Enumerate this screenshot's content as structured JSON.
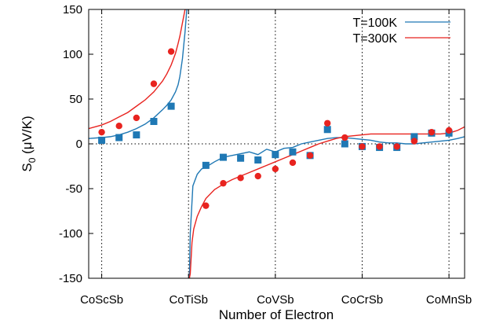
{
  "chart_data": {
    "type": "line",
    "xlabel": "Number of Electron",
    "ylabel_main": "S",
    "ylabel_sub": "0",
    "ylabel_unit": " (μV/K)",
    "categories": [
      "CoScSb",
      "CoTiSb",
      "CoVSb",
      "CoCrSb",
      "CoMnSb"
    ],
    "category_x": [
      0,
      1,
      2,
      3,
      4
    ],
    "xlim": [
      -0.15,
      4.18
    ],
    "ylim": [
      -150,
      150
    ],
    "yticks": [
      -150,
      -100,
      -50,
      0,
      50,
      100,
      150
    ],
    "grid": "dotted vertical lines at compounds, dotted zero line",
    "legend_position": "top-right",
    "series": [
      {
        "name": "T=100K",
        "kind": "line",
        "color": "#1f78b4",
        "x": [
          -0.15,
          0.0,
          0.1,
          0.2,
          0.3,
          0.4,
          0.5,
          0.6,
          0.7,
          0.75,
          0.8,
          0.85,
          0.88,
          0.9,
          0.93,
          0.96,
          0.98,
          0.99,
          1.0,
          1.01,
          1.02,
          1.05,
          1.1,
          1.15,
          1.2,
          1.3,
          1.4,
          1.5,
          1.6,
          1.7,
          1.8,
          1.9,
          2.0,
          2.1,
          2.2,
          2.3,
          2.4,
          2.5,
          2.6,
          2.7,
          2.8,
          2.9,
          3.0,
          3.1,
          3.2,
          3.3,
          3.4,
          3.5,
          3.6,
          3.7,
          3.8,
          3.9,
          4.0,
          4.1,
          4.18
        ],
        "y": [
          6,
          7,
          8,
          10,
          13,
          17,
          22,
          29,
          38,
          43,
          49,
          58,
          66,
          75,
          95,
          125,
          150,
          150,
          -150,
          -150,
          -100,
          -47,
          -34,
          -28,
          -26,
          -20,
          -15,
          -13,
          -11,
          -9,
          -12,
          -6,
          -9,
          -5,
          -4,
          0,
          2,
          4,
          6,
          7,
          7,
          6,
          5,
          4,
          2,
          1,
          1,
          0,
          0,
          1,
          2,
          3,
          4,
          6,
          8
        ]
      },
      {
        "name": "T=300K",
        "kind": "line",
        "color": "#e8231f",
        "x": [
          -0.15,
          0.0,
          0.1,
          0.2,
          0.3,
          0.4,
          0.5,
          0.6,
          0.7,
          0.75,
          0.8,
          0.85,
          0.88,
          0.9,
          0.92,
          0.94,
          0.96,
          0.97,
          1.0,
          1.01,
          1.02,
          1.04,
          1.06,
          1.1,
          1.15,
          1.2,
          1.3,
          1.4,
          1.5,
          1.6,
          1.7,
          1.8,
          1.9,
          2.0,
          2.1,
          2.2,
          2.3,
          2.4,
          2.5,
          2.6,
          2.7,
          2.8,
          2.9,
          3.0,
          3.1,
          3.2,
          3.3,
          3.4,
          3.5,
          3.6,
          3.7,
          3.8,
          3.9,
          4.0,
          4.1,
          4.18
        ],
        "y": [
          17,
          21,
          25,
          30,
          35,
          42,
          49,
          58,
          70,
          78,
          88,
          101,
          112,
          120,
          130,
          140,
          150,
          150,
          -150,
          -150,
          -145,
          -110,
          -95,
          -81,
          -70,
          -61,
          -51,
          -45,
          -40,
          -36,
          -32,
          -28,
          -24,
          -20,
          -16,
          -12,
          -8,
          -4,
          0,
          3,
          6,
          8,
          9,
          10,
          11,
          11,
          11,
          11,
          11,
          11,
          11,
          11,
          11,
          12,
          15,
          19
        ]
      },
      {
        "name": "T=100K points",
        "kind": "marker-square",
        "color": "#1f78b4",
        "x": [
          0.0,
          0.2,
          0.4,
          0.6,
          0.8,
          1.2,
          1.4,
          1.6,
          1.8,
          2.0,
          2.2,
          2.4,
          2.6,
          2.8,
          3.0,
          3.2,
          3.4,
          3.6,
          3.8,
          4.0
        ],
        "y": [
          4,
          7,
          10,
          25,
          42,
          -24,
          -15,
          -16,
          -18,
          -12,
          -9,
          -13,
          16,
          0,
          -3,
          -4,
          -4,
          8,
          12,
          12
        ]
      },
      {
        "name": "T=300K points",
        "kind": "marker-circle",
        "color": "#e8231f",
        "x": [
          0.0,
          0.2,
          0.4,
          0.6,
          0.8,
          1.2,
          1.4,
          1.6,
          1.8,
          2.0,
          2.2,
          2.4,
          2.6,
          2.8,
          3.0,
          3.2,
          3.4,
          3.6,
          3.8,
          4.0
        ],
        "y": [
          13,
          20,
          29,
          67,
          103,
          -69,
          -44,
          -38,
          -36,
          -28,
          -21,
          -13,
          23,
          7,
          -3,
          -3,
          -3,
          3,
          13,
          15
        ]
      }
    ]
  }
}
